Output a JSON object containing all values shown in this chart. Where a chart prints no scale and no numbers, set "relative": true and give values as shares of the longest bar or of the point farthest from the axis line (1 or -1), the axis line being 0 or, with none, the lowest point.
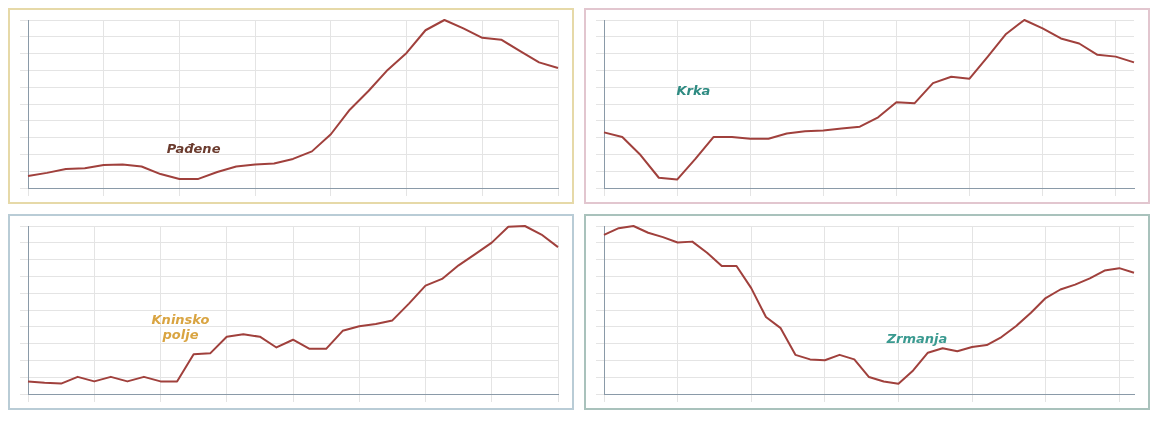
{
  "chart_data": [
    {
      "type": "line",
      "relative": true,
      "grid": true,
      "annotations": [
        "Pađene"
      ],
      "categories": [
        null,
        null,
        null,
        null,
        null,
        null,
        null,
        null,
        null,
        null,
        null,
        null,
        null,
        null,
        null,
        null,
        null,
        null,
        null,
        null,
        null,
        null,
        null,
        null,
        null,
        null,
        null,
        null,
        null
      ],
      "series": [
        {
          "color": "#a0403c",
          "values": [
            0.072,
            0.09,
            0.113,
            0.117,
            0.137,
            0.14,
            0.128,
            0.083,
            0.054,
            0.054,
            0.095,
            0.128,
            0.14,
            0.146,
            0.173,
            0.218,
            0.32,
            0.466,
            0.579,
            0.703,
            0.804,
            0.939,
            1,
            0.95,
            0.894,
            0.883,
            0.815,
            0.748,
            0.714
          ]
        }
      ]
    },
    {
      "type": "line",
      "relative": true,
      "grid": true,
      "annotations": [
        "Krka"
      ],
      "categories": [
        null,
        null,
        null,
        null,
        null,
        null,
        null,
        null,
        null,
        null,
        null,
        null,
        null,
        null,
        null,
        null,
        null,
        null,
        null,
        null,
        null,
        null,
        null,
        null,
        null,
        null,
        null,
        null,
        null,
        null
      ],
      "series": [
        {
          "color": "#a0403c",
          "values": [
            0.331,
            0.304,
            0.196,
            0.061,
            0.05,
            0.173,
            0.304,
            0.304,
            0.293,
            0.293,
            0.324,
            0.338,
            0.342,
            0.354,
            0.365,
            0.421,
            0.511,
            0.505,
            0.624,
            0.662,
            0.651,
            0.782,
            0.917,
            1,
            0.95,
            0.89,
            0.86,
            0.793,
            0.782,
            0.748
          ]
        }
      ]
    },
    {
      "type": "line",
      "relative": true,
      "grid": true,
      "annotations": [
        "Kninsko polje"
      ],
      "categories": [
        null,
        null,
        null,
        null,
        null,
        null,
        null,
        null,
        null,
        null,
        null,
        null,
        null,
        null,
        null,
        null,
        null,
        null,
        null,
        null,
        null,
        null,
        null,
        null,
        null,
        null,
        null,
        null,
        null,
        null,
        null,
        null,
        null
      ],
      "series": [
        {
          "color": "#a0403c",
          "values": [
            0.075,
            0.067,
            0.062,
            0.102,
            0.075,
            0.102,
            0.075,
            0.102,
            0.075,
            0.075,
            0.237,
            0.242,
            0.341,
            0.355,
            0.341,
            0.277,
            0.323,
            0.269,
            0.269,
            0.376,
            0.403,
            0.417,
            0.438,
            0.538,
            0.645,
            0.685,
            0.766,
            0.833,
            0.901,
            0.995,
            1,
            0.949,
            0.874
          ]
        }
      ]
    },
    {
      "type": "line",
      "relative": true,
      "grid": true,
      "annotations": [
        "Zrmanja"
      ],
      "categories": [
        null,
        null,
        null,
        null,
        null,
        null,
        null,
        null,
        null,
        null,
        null,
        null,
        null,
        null,
        null,
        null,
        null,
        null,
        null,
        null,
        null,
        null,
        null,
        null,
        null,
        null,
        null,
        null,
        null,
        null,
        null,
        null,
        null,
        null,
        null,
        null,
        null
      ],
      "series": [
        {
          "color": "#a0403c",
          "values": [
            0.947,
            0.987,
            1,
            0.96,
            0.934,
            0.902,
            0.907,
            0.841,
            0.762,
            0.762,
            0.63,
            0.458,
            0.392,
            0.233,
            0.206,
            0.201,
            0.233,
            0.206,
            0.101,
            0.074,
            0.061,
            0.14,
            0.246,
            0.272,
            0.254,
            0.28,
            0.291,
            0.339,
            0.405,
            0.484,
            0.571,
            0.622,
            0.651,
            0.688,
            0.735,
            0.749,
            0.722
          ]
        }
      ]
    }
  ]
}
